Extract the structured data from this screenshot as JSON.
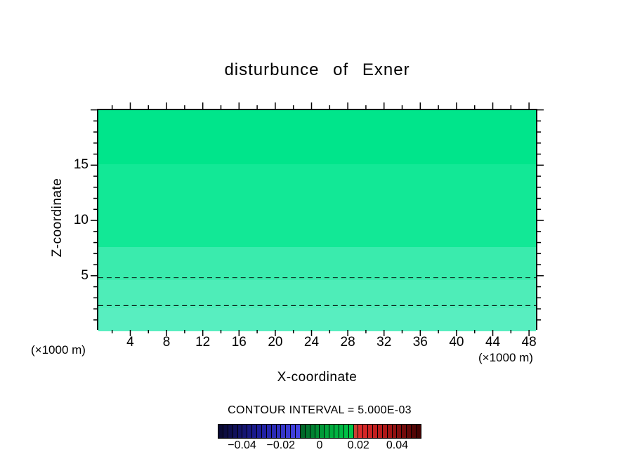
{
  "page": {
    "background": "#ffffff",
    "frame_color": "#000000"
  },
  "chart_data": {
    "type": "heatmap",
    "title": "disturbunce of Exner",
    "xlabel": "X-coordinate",
    "ylabel": "Z-coordinate",
    "x_unit": "(×1000 m)",
    "y_unit": "(×1000 m)",
    "xlim": [
      0.32,
      48.92
    ],
    "ylim": [
      0.1,
      20.1
    ],
    "x_major_ticks": [
      4,
      8,
      12,
      16,
      20,
      24,
      28,
      32,
      36,
      40,
      44,
      48
    ],
    "x_minor_step": 2,
    "y_major_ticks": [
      5,
      10,
      15
    ],
    "y_minor_step": 1,
    "grid": false,
    "contour_interval_label": "CONTOUR INTERVAL = 5.000E-03",
    "contour_interval": 0.005,
    "fill_bands": [
      {
        "from": 15.2,
        "to": 20.1,
        "color": "#00E58B"
      },
      {
        "from": 7.7,
        "to": 15.2,
        "color": "#12E896"
      },
      {
        "from": 4.75,
        "to": 7.7,
        "color": "#3AEBAD"
      },
      {
        "from": 2.2,
        "to": 4.75,
        "color": "#4EEDB8"
      },
      {
        "from": 0.1,
        "to": 2.2,
        "color": "#58EEC0"
      }
    ],
    "dashed_contours": [
      4.75,
      2.2
    ],
    "colorbar": {
      "min": -0.0525,
      "max": 0.0525,
      "cells": 42,
      "tick_labels": [
        "−0.04",
        "−0.02",
        "0",
        "0.02",
        "0.04"
      ],
      "tick_values": [
        -0.04,
        -0.02,
        0,
        0.02,
        0.04
      ],
      "stops": [
        [
          -0.0525,
          "#08082E"
        ],
        [
          -0.03,
          "#1E1E9E"
        ],
        [
          -0.0105,
          "#4646E6"
        ],
        [
          -0.0095,
          "#006428"
        ],
        [
          0.004,
          "#00A83C"
        ],
        [
          0.017,
          "#00C84A"
        ],
        [
          0.019,
          "#E62E2E"
        ],
        [
          0.035,
          "#A81616"
        ],
        [
          0.0525,
          "#3C0000"
        ]
      ]
    }
  }
}
